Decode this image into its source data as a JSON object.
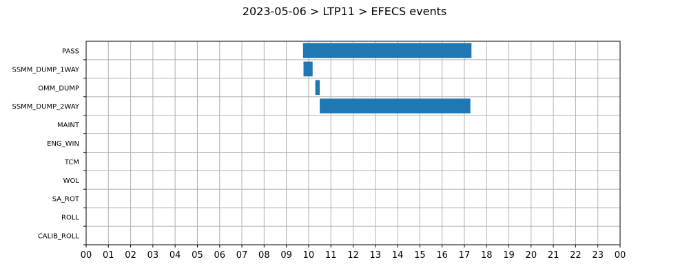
{
  "chart_data": {
    "type": "bar",
    "orientation": "horizontal",
    "title": "2023-05-06 > LTP11 > EFECS events",
    "xlabel": "",
    "ylabel": "",
    "grid": true,
    "xlim": [
      0,
      24
    ],
    "x_tick_labels": [
      "00",
      "01",
      "02",
      "03",
      "04",
      "05",
      "06",
      "07",
      "08",
      "09",
      "10",
      "11",
      "12",
      "13",
      "14",
      "15",
      "16",
      "17",
      "18",
      "19",
      "20",
      "21",
      "22",
      "23",
      "00"
    ],
    "categories": [
      "PASS",
      "SSMM_DUMP_1WAY",
      "OMM_DUMP",
      "SSMM_DUMP_2WAY",
      "MAINT",
      "ENG_WIN",
      "TCM",
      "WOL",
      "SA_ROT",
      "ROLL",
      "CALIB_ROLL"
    ],
    "events": [
      {
        "category": "PASS",
        "start": 9.75,
        "end": 17.32
      },
      {
        "category": "SSMM_DUMP_1WAY",
        "start": 9.77,
        "end": 10.18
      },
      {
        "category": "OMM_DUMP",
        "start": 10.3,
        "end": 10.5
      },
      {
        "category": "SSMM_DUMP_2WAY",
        "start": 10.5,
        "end": 17.27
      }
    ],
    "colors": {
      "bar": "#1f77b4",
      "grid": "#b0b0b0",
      "axis": "#000000"
    }
  }
}
